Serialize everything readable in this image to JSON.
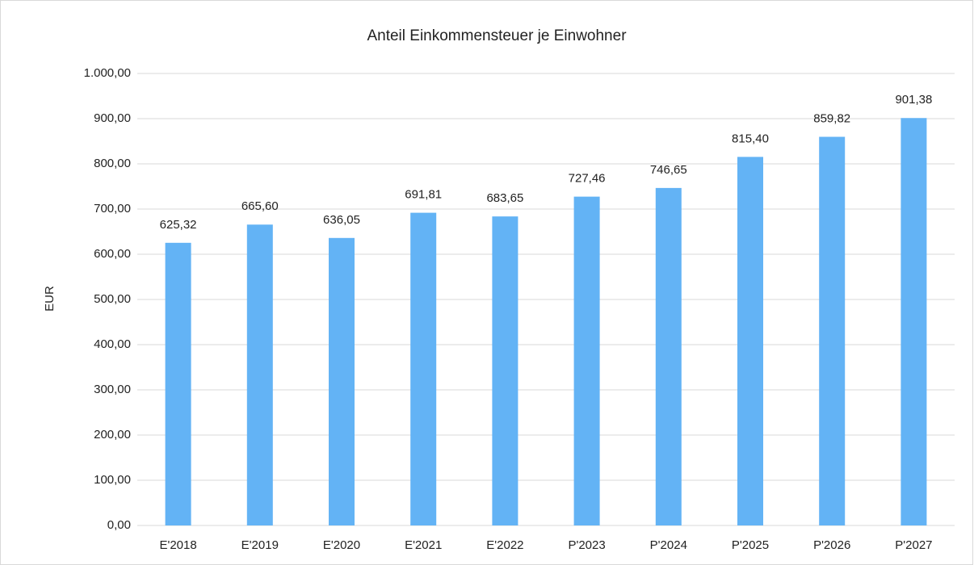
{
  "chart_data": {
    "type": "bar",
    "title": "Anteil Einkommensteuer je Einwohner",
    "y_label": "EUR",
    "categories": [
      "E'2018",
      "E'2019",
      "E'2020",
      "E'2021",
      "E'2022",
      "P'2023",
      "P'2024",
      "P'2025",
      "P'2026",
      "P'2027"
    ],
    "values": [
      625.32,
      665.6,
      636.05,
      691.81,
      683.65,
      727.46,
      746.65,
      815.4,
      859.82,
      901.38
    ],
    "value_labels": [
      "625,32",
      "665,60",
      "636,05",
      "691,81",
      "683,65",
      "727,46",
      "746,65",
      "815,40",
      "859,82",
      "901,38"
    ],
    "color": "#63b3f5",
    "ylim": [
      0,
      1000
    ],
    "yticks": [
      {
        "value": 0,
        "label": "0,00"
      },
      {
        "value": 100,
        "label": "100,00"
      },
      {
        "value": 200,
        "label": "200,00"
      },
      {
        "value": 300,
        "label": "300,00"
      },
      {
        "value": 400,
        "label": "400,00"
      },
      {
        "value": 500,
        "label": "500,00"
      },
      {
        "value": 600,
        "label": "600,00"
      },
      {
        "value": 700,
        "label": "700,00"
      },
      {
        "value": 800,
        "label": "800,00"
      },
      {
        "value": 900,
        "label": "900,00"
      },
      {
        "value": 1000,
        "label": "1.000,00"
      }
    ],
    "grid": true
  }
}
